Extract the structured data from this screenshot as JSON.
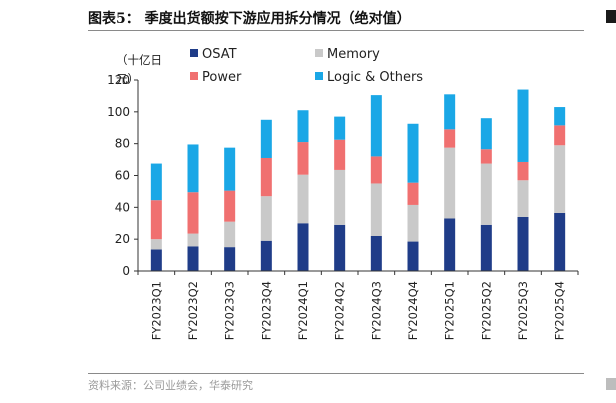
{
  "page": {
    "title": "图表5： 季度出货额按下游应用拆分情况（绝对值）",
    "source": "资料来源：公司业绩会，华泰研究"
  },
  "chart_data": {
    "type": "bar",
    "stacked": true,
    "y_unit": [
      "（十亿日",
      "元）"
    ],
    "categories": [
      "FY2023Q1",
      "FY2023Q2",
      "FY2023Q3",
      "FY2023Q4",
      "FY2024Q1",
      "FY2024Q2",
      "FY2024Q3",
      "FY2024Q4",
      "FY2025Q1",
      "FY2025Q2",
      "FY2025Q3",
      "FY2025Q4"
    ],
    "series": [
      {
        "name": "OSAT",
        "color": "#1f3c88",
        "values": [
          13.5,
          15.5,
          15,
          19,
          30,
          29,
          22,
          18.5,
          33,
          29,
          34,
          36.5
        ]
      },
      {
        "name": "Memory",
        "color": "#c9c9c9",
        "values": [
          6.5,
          8,
          16,
          28,
          30.5,
          34.5,
          33,
          23,
          44.5,
          38.5,
          23,
          42.5
        ]
      },
      {
        "name": "Power",
        "color": "#f07070",
        "values": [
          24.5,
          26,
          19.5,
          24,
          20.5,
          19,
          17,
          14,
          11.5,
          9,
          11.5,
          12.5
        ]
      },
      {
        "name": "Logic & Others",
        "color": "#1aa7e6",
        "values": [
          23,
          30,
          27,
          24,
          20,
          14.5,
          38.5,
          37,
          22,
          19.5,
          45.5,
          11.5
        ]
      }
    ],
    "ylim": [
      0,
      120
    ],
    "yticks": [
      0,
      20,
      40,
      60,
      80,
      100,
      120
    ],
    "grid": false,
    "legend_position": "top"
  }
}
